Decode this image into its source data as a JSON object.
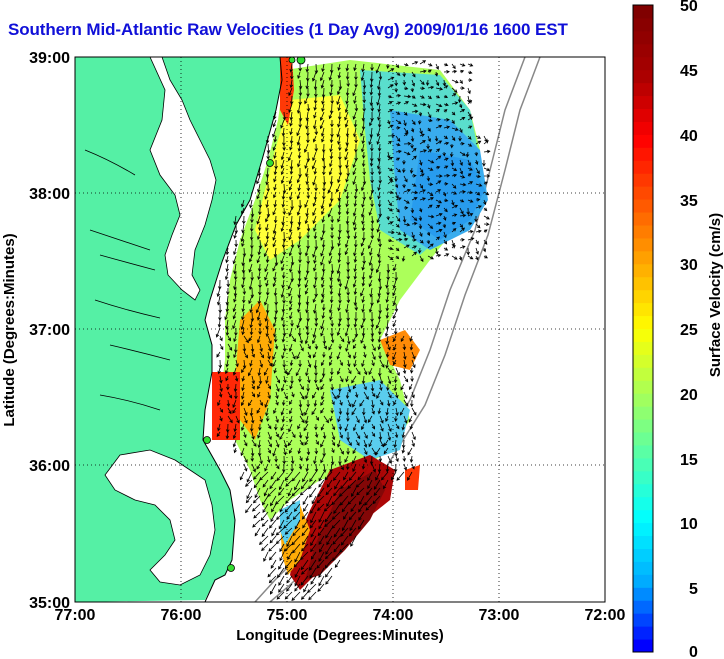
{
  "title": "Southern Mid-Atlantic Raw Velocities (1 Day Avg) 2009/01/16 1600 EST",
  "axes": {
    "xlabel": "Longitude (Degrees:Minutes)",
    "ylabel": "Latitude (Degrees:Minutes)",
    "x_ticks": [
      "77:00",
      "76:00",
      "75:00",
      "74:00",
      "73:00",
      "72:00"
    ],
    "y_ticks": [
      "39:00",
      "38:00",
      "37:00",
      "36:00",
      "35:00"
    ]
  },
  "colorbar": {
    "label": "Surface Velocity (cm/s)",
    "ticks": [
      "50",
      "45",
      "40",
      "35",
      "30",
      "25",
      "20",
      "15",
      "10",
      "5",
      "0"
    ],
    "range": [
      0,
      50
    ],
    "colors": [
      "#0000ff",
      "#00aaff",
      "#00ffff",
      "#55ffaa",
      "#aaff55",
      "#ffff00",
      "#ffaa00",
      "#ff5500",
      "#ff0000",
      "#aa0000",
      "#800000"
    ]
  },
  "colors": {
    "land": "#55f0a5",
    "water": "#ffffff",
    "title": "#1010d8",
    "grid": "#000000",
    "coast": "#000000",
    "station": "#33dd33"
  },
  "map": {
    "lon_range": [
      "77:00",
      "72:00"
    ],
    "lat_range": [
      "35:00",
      "39:00"
    ],
    "grid": "dotted",
    "vectors": "black arrows",
    "hf_radar_stations": 5
  }
}
